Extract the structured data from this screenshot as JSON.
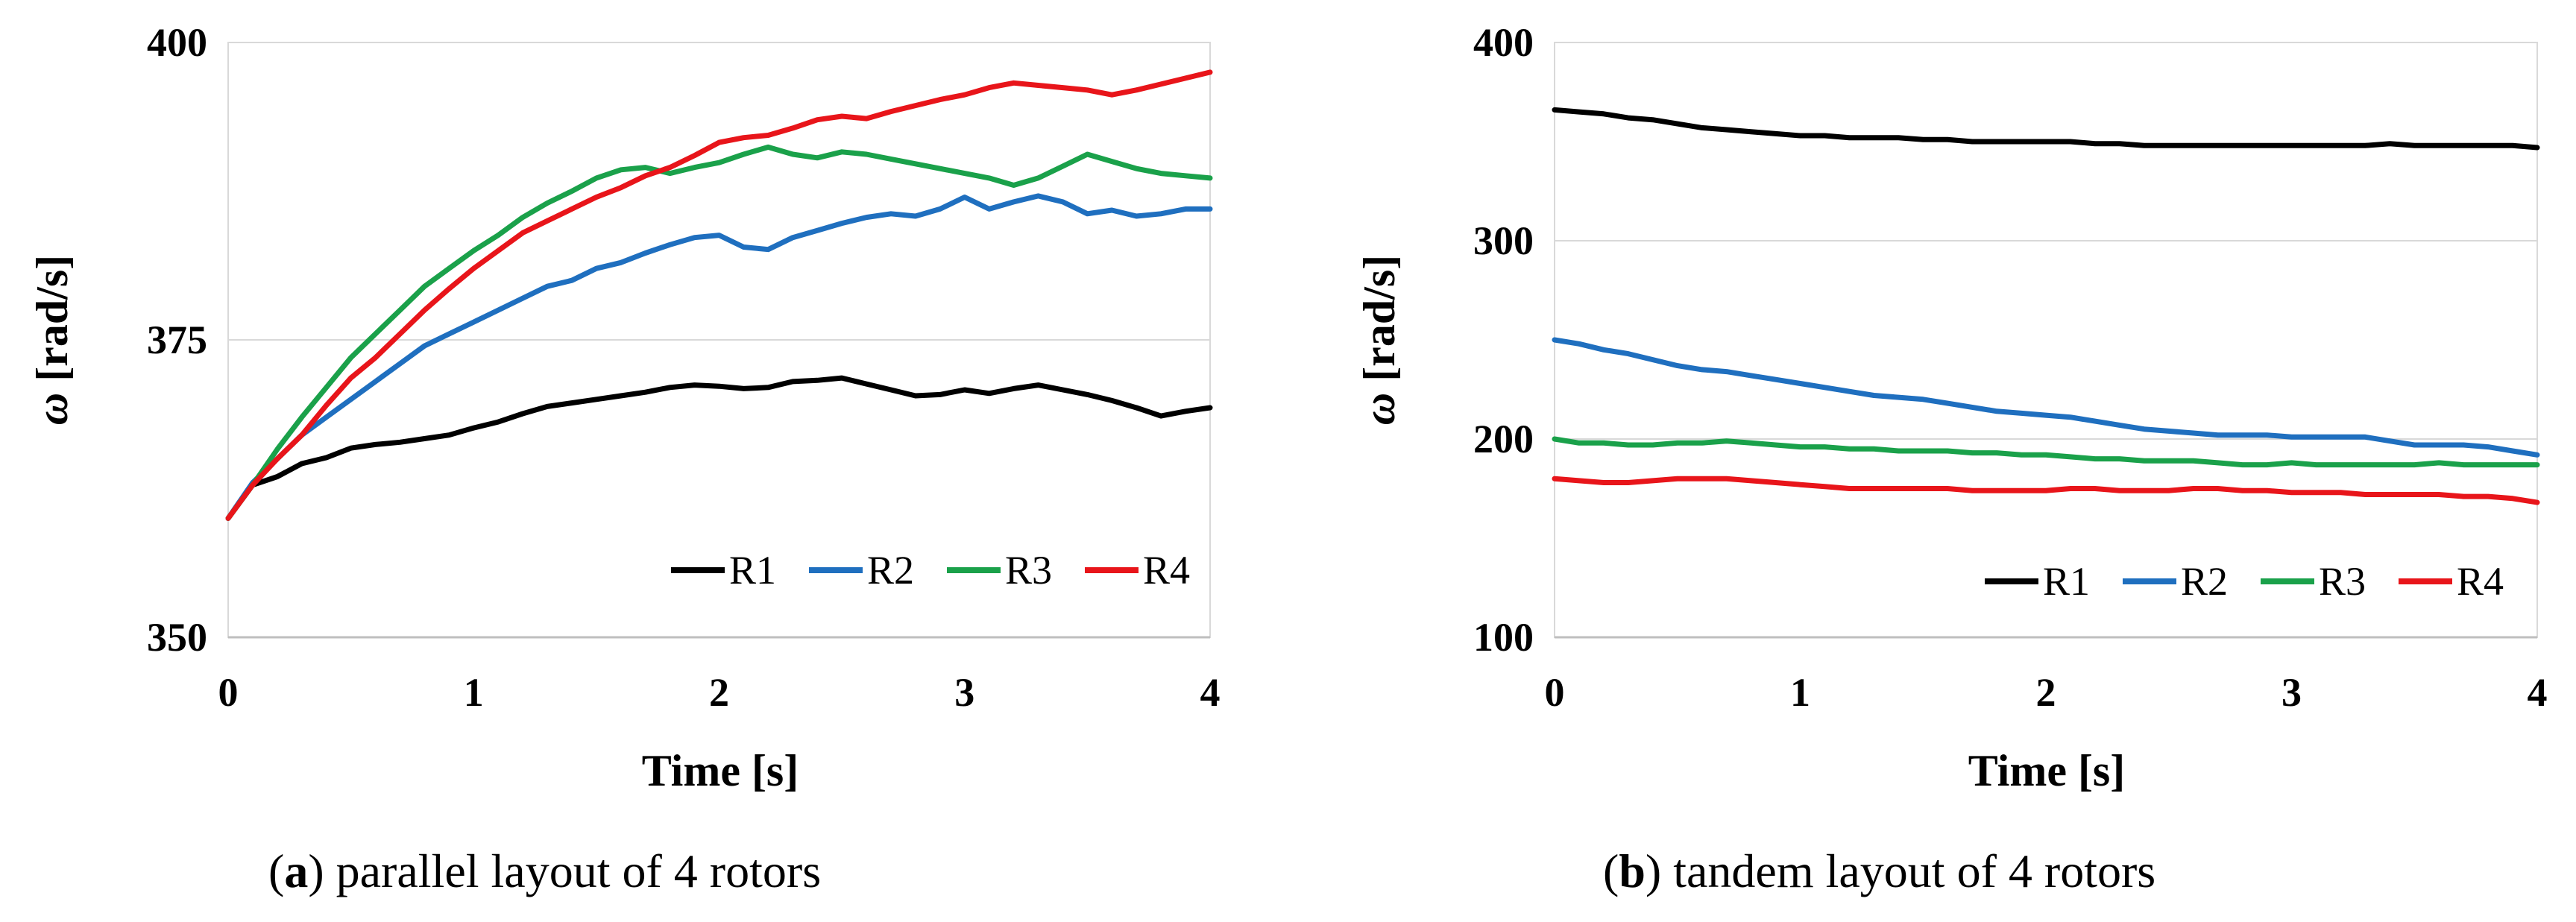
{
  "chart_data": [
    {
      "type": "line",
      "panel_letter": "a",
      "caption_rest": ") parallel layout of 4 rotors",
      "caption_open": "(",
      "xlabel": "Time [s]",
      "ylabel_symbol": "ω",
      "ylabel_unit": " [rad/s]",
      "xlim": [
        0,
        4
      ],
      "ylim": [
        350,
        400
      ],
      "xticks": [
        "0",
        "1",
        "2",
        "3",
        "4"
      ],
      "yticks": [
        "350",
        "375",
        "400"
      ],
      "ytick_values": [
        350,
        375,
        400
      ],
      "grid": "horizontal",
      "legend_position": "bottom-right",
      "series": [
        {
          "name": "R1",
          "color": "#000000",
          "x": [
            0,
            0.1,
            0.2,
            0.3,
            0.4,
            0.5,
            0.6,
            0.7,
            0.8,
            0.9,
            1.0,
            1.1,
            1.2,
            1.3,
            1.4,
            1.5,
            1.6,
            1.7,
            1.8,
            1.9,
            2.0,
            2.1,
            2.2,
            2.3,
            2.4,
            2.5,
            2.6,
            2.7,
            2.8,
            2.9,
            3.0,
            3.1,
            3.2,
            3.3,
            3.4,
            3.5,
            3.6,
            3.7,
            3.8,
            3.9,
            4.0
          ],
          "values": [
            360.0,
            362.8,
            363.5,
            364.6,
            365.1,
            365.9,
            366.2,
            366.4,
            366.7,
            367.0,
            367.6,
            368.1,
            368.8,
            369.4,
            369.7,
            370.0,
            370.3,
            370.6,
            371.0,
            371.2,
            371.1,
            370.9,
            371.0,
            371.5,
            371.6,
            371.8,
            371.3,
            370.8,
            370.3,
            370.4,
            370.8,
            370.5,
            370.9,
            371.2,
            370.8,
            370.4,
            369.9,
            369.3,
            368.6,
            369.0,
            369.3
          ]
        },
        {
          "name": "R2",
          "color": "#1f6fbf",
          "x": [
            0,
            0.1,
            0.2,
            0.3,
            0.4,
            0.5,
            0.6,
            0.7,
            0.8,
            0.9,
            1.0,
            1.1,
            1.2,
            1.3,
            1.4,
            1.5,
            1.6,
            1.7,
            1.8,
            1.9,
            2.0,
            2.1,
            2.2,
            2.3,
            2.4,
            2.5,
            2.6,
            2.7,
            2.8,
            2.9,
            3.0,
            3.1,
            3.2,
            3.3,
            3.4,
            3.5,
            3.6,
            3.7,
            3.8,
            3.9,
            4.0
          ],
          "values": [
            360.0,
            363.0,
            365.0,
            367.0,
            368.5,
            370.0,
            371.5,
            373.0,
            374.5,
            375.5,
            376.5,
            377.5,
            378.5,
            379.5,
            380.0,
            381.0,
            381.5,
            382.3,
            383.0,
            383.6,
            383.8,
            382.8,
            382.6,
            383.6,
            384.2,
            384.8,
            385.3,
            385.6,
            385.4,
            386.0,
            387.0,
            386.0,
            386.6,
            387.1,
            386.6,
            385.6,
            385.9,
            385.4,
            385.6,
            386.0,
            386.0
          ]
        },
        {
          "name": "R3",
          "color": "#1aa14a",
          "x": [
            0,
            0.1,
            0.2,
            0.3,
            0.4,
            0.5,
            0.6,
            0.7,
            0.8,
            0.9,
            1.0,
            1.1,
            1.2,
            1.3,
            1.4,
            1.5,
            1.6,
            1.7,
            1.8,
            1.9,
            2.0,
            2.1,
            2.2,
            2.3,
            2.4,
            2.5,
            2.6,
            2.7,
            2.8,
            2.9,
            3.0,
            3.1,
            3.2,
            3.3,
            3.4,
            3.5,
            3.6,
            3.7,
            3.8,
            3.9,
            4.0
          ],
          "values": [
            360.0,
            362.8,
            365.8,
            368.5,
            371.0,
            373.5,
            375.5,
            377.5,
            379.5,
            381.0,
            382.5,
            383.8,
            385.3,
            386.5,
            387.5,
            388.6,
            389.3,
            389.5,
            389.0,
            389.5,
            389.9,
            390.6,
            391.2,
            390.6,
            390.3,
            390.8,
            390.6,
            390.2,
            389.8,
            389.4,
            389.0,
            388.6,
            388.0,
            388.6,
            389.6,
            390.6,
            390.0,
            389.4,
            389.0,
            388.8,
            388.6
          ]
        },
        {
          "name": "R4",
          "color": "#e8151a",
          "x": [
            0,
            0.1,
            0.2,
            0.3,
            0.4,
            0.5,
            0.6,
            0.7,
            0.8,
            0.9,
            1.0,
            1.1,
            1.2,
            1.3,
            1.4,
            1.5,
            1.6,
            1.7,
            1.8,
            1.9,
            2.0,
            2.1,
            2.2,
            2.3,
            2.4,
            2.5,
            2.6,
            2.7,
            2.8,
            2.9,
            3.0,
            3.1,
            3.2,
            3.3,
            3.4,
            3.5,
            3.6,
            3.7,
            3.8,
            3.9,
            4.0
          ],
          "values": [
            360.0,
            362.8,
            365.0,
            367.0,
            369.5,
            371.8,
            373.5,
            375.5,
            377.5,
            379.3,
            381.0,
            382.5,
            384.0,
            385.0,
            386.0,
            387.0,
            387.8,
            388.8,
            389.5,
            390.5,
            391.6,
            392.0,
            392.2,
            392.8,
            393.5,
            393.8,
            393.6,
            394.2,
            394.7,
            395.2,
            395.6,
            396.2,
            396.6,
            396.4,
            396.2,
            396.0,
            395.6,
            396.0,
            396.5,
            397.0,
            397.5
          ]
        }
      ]
    },
    {
      "type": "line",
      "panel_letter": "b",
      "caption_rest": ") tandem layout of 4 rotors",
      "caption_open": "(",
      "xlabel": "Time [s]",
      "ylabel_symbol": "ω",
      "ylabel_unit": " [rad/s]",
      "xlim": [
        0,
        4
      ],
      "ylim": [
        100,
        400
      ],
      "xticks": [
        "0",
        "1",
        "2",
        "3",
        "4"
      ],
      "yticks": [
        "100",
        "200",
        "300",
        "400"
      ],
      "ytick_values": [
        100,
        200,
        300,
        400
      ],
      "grid": "horizontal",
      "legend_position": "bottom-right",
      "series": [
        {
          "name": "R1",
          "color": "#000000",
          "x": [
            0,
            0.1,
            0.2,
            0.3,
            0.4,
            0.5,
            0.6,
            0.7,
            0.8,
            0.9,
            1.0,
            1.1,
            1.2,
            1.3,
            1.4,
            1.5,
            1.6,
            1.7,
            1.8,
            1.9,
            2.0,
            2.1,
            2.2,
            2.3,
            2.4,
            2.5,
            2.6,
            2.7,
            2.8,
            2.9,
            3.0,
            3.1,
            3.2,
            3.3,
            3.4,
            3.5,
            3.6,
            3.7,
            3.8,
            3.9,
            4.0
          ],
          "values": [
            366,
            365,
            364,
            362,
            361,
            359,
            357,
            356,
            355,
            354,
            353,
            353,
            352,
            352,
            352,
            351,
            351,
            350,
            350,
            350,
            350,
            350,
            349,
            349,
            348,
            348,
            348,
            348,
            348,
            348,
            348,
            348,
            348,
            348,
            349,
            348,
            348,
            348,
            348,
            348,
            347
          ]
        },
        {
          "name": "R2",
          "color": "#1f6fbf",
          "x": [
            0,
            0.1,
            0.2,
            0.3,
            0.4,
            0.5,
            0.6,
            0.7,
            0.8,
            0.9,
            1.0,
            1.1,
            1.2,
            1.3,
            1.4,
            1.5,
            1.6,
            1.7,
            1.8,
            1.9,
            2.0,
            2.1,
            2.2,
            2.3,
            2.4,
            2.5,
            2.6,
            2.7,
            2.8,
            2.9,
            3.0,
            3.1,
            3.2,
            3.3,
            3.4,
            3.5,
            3.6,
            3.7,
            3.8,
            3.9,
            4.0
          ],
          "values": [
            250,
            248,
            245,
            243,
            240,
            237,
            235,
            234,
            232,
            230,
            228,
            226,
            224,
            222,
            221,
            220,
            218,
            216,
            214,
            213,
            212,
            211,
            209,
            207,
            205,
            204,
            203,
            202,
            202,
            202,
            201,
            201,
            201,
            201,
            199,
            197,
            197,
            197,
            196,
            194,
            192
          ]
        },
        {
          "name": "R3",
          "color": "#1aa14a",
          "x": [
            0,
            0.1,
            0.2,
            0.3,
            0.4,
            0.5,
            0.6,
            0.7,
            0.8,
            0.9,
            1.0,
            1.1,
            1.2,
            1.3,
            1.4,
            1.5,
            1.6,
            1.7,
            1.8,
            1.9,
            2.0,
            2.1,
            2.2,
            2.3,
            2.4,
            2.5,
            2.6,
            2.7,
            2.8,
            2.9,
            3.0,
            3.1,
            3.2,
            3.3,
            3.4,
            3.5,
            3.6,
            3.7,
            3.8,
            3.9,
            4.0
          ],
          "values": [
            200,
            198,
            198,
            197,
            197,
            198,
            198,
            199,
            198,
            197,
            196,
            196,
            195,
            195,
            194,
            194,
            194,
            193,
            193,
            192,
            192,
            191,
            190,
            190,
            189,
            189,
            189,
            188,
            187,
            187,
            188,
            187,
            187,
            187,
            187,
            187,
            188,
            187,
            187,
            187,
            187
          ]
        },
        {
          "name": "R4",
          "color": "#e8151a",
          "x": [
            0,
            0.1,
            0.2,
            0.3,
            0.4,
            0.5,
            0.6,
            0.7,
            0.8,
            0.9,
            1.0,
            1.1,
            1.2,
            1.3,
            1.4,
            1.5,
            1.6,
            1.7,
            1.8,
            1.9,
            2.0,
            2.1,
            2.2,
            2.3,
            2.4,
            2.5,
            2.6,
            2.7,
            2.8,
            2.9,
            3.0,
            3.1,
            3.2,
            3.3,
            3.4,
            3.5,
            3.6,
            3.7,
            3.8,
            3.9,
            4.0
          ],
          "values": [
            180,
            179,
            178,
            178,
            179,
            180,
            180,
            180,
            179,
            178,
            177,
            176,
            175,
            175,
            175,
            175,
            175,
            174,
            174,
            174,
            174,
            175,
            175,
            174,
            174,
            174,
            175,
            175,
            174,
            174,
            173,
            173,
            173,
            172,
            172,
            172,
            172,
            171,
            171,
            170,
            168
          ]
        }
      ]
    }
  ]
}
